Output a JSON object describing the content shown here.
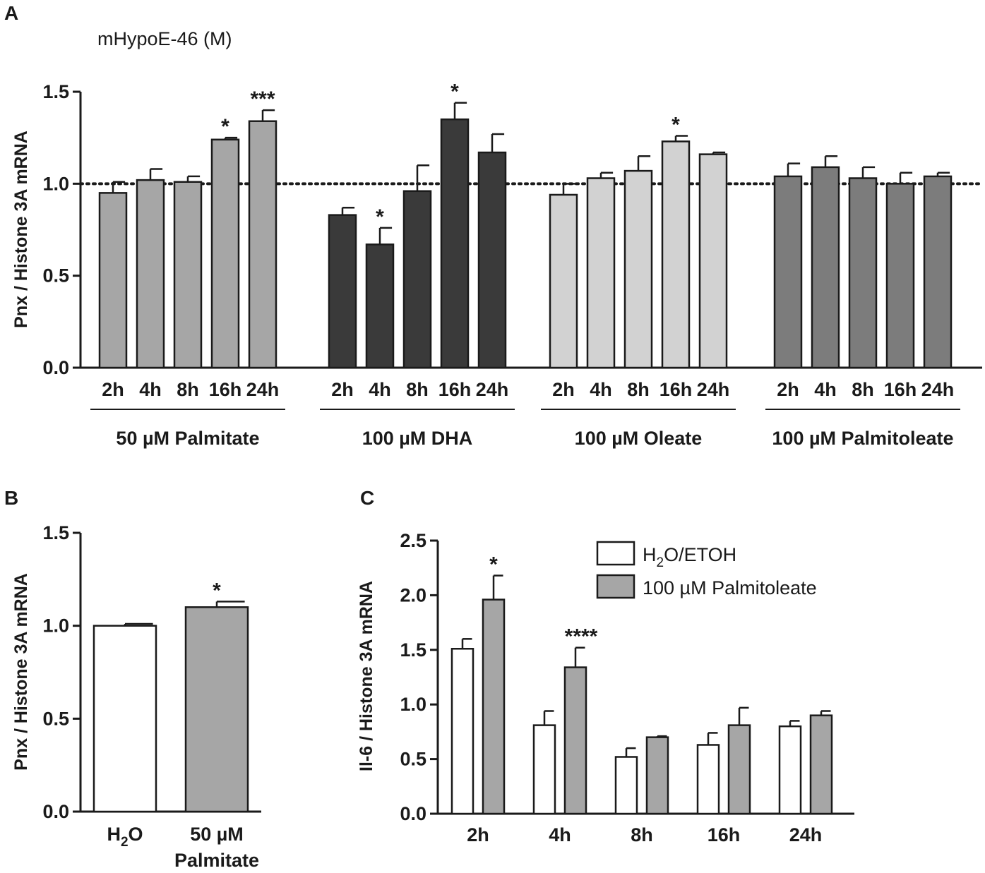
{
  "colors": {
    "palmitate": "#a6a6a6",
    "dha": "#3a3a3a",
    "oleate": "#d2d2d2",
    "palmitoleate": "#7c7c7c",
    "white": "#ffffff",
    "edge": "#1a1a1a"
  },
  "chart_data": [
    {
      "panel": "A",
      "type": "bar",
      "title": "mHypoE-46 (M)",
      "ylabel": "Pnx / Histone 3A mRNA",
      "ylim": [
        0,
        1.5
      ],
      "yticks": [
        "0.0",
        "0.5",
        "1.0",
        "1.5"
      ],
      "reference_line": 1.0,
      "categories": [
        "2h",
        "4h",
        "8h",
        "16h",
        "24h"
      ],
      "groups": [
        {
          "name": "50 µM Palmitate",
          "color_key": "palmitate",
          "values": [
            0.95,
            1.02,
            1.01,
            1.24,
            1.34
          ],
          "errors": [
            0.06,
            0.06,
            0.03,
            0.01,
            0.06
          ],
          "annotations": [
            "",
            "",
            "",
            "*",
            "***"
          ]
        },
        {
          "name": "100 µM DHA",
          "color_key": "dha",
          "values": [
            0.83,
            0.67,
            0.96,
            1.35,
            1.17
          ],
          "errors": [
            0.04,
            0.09,
            0.14,
            0.09,
            0.1
          ],
          "annotations": [
            "",
            "*",
            "",
            "*",
            ""
          ]
        },
        {
          "name": "100 µM Oleate",
          "color_key": "oleate",
          "values": [
            0.94,
            1.03,
            1.07,
            1.23,
            1.16
          ],
          "errors": [
            0.06,
            0.03,
            0.08,
            0.03,
            0.01
          ],
          "annotations": [
            "",
            "",
            "",
            "*",
            ""
          ]
        },
        {
          "name": "100 µM Palmitoleate",
          "color_key": "palmitoleate",
          "values": [
            1.04,
            1.09,
            1.03,
            1.0,
            1.04
          ],
          "errors": [
            0.07,
            0.06,
            0.06,
            0.06,
            0.02
          ],
          "annotations": [
            "",
            "",
            "",
            "",
            ""
          ]
        }
      ]
    },
    {
      "panel": "B",
      "type": "bar",
      "ylabel": "Pnx / Histone 3A mRNA",
      "ylim": [
        0,
        1.5
      ],
      "yticks": [
        "0.0",
        "0.5",
        "1.0",
        "1.5"
      ],
      "categories": [
        {
          "main": "H",
          "sub": "2",
          "tail": "O",
          "line2": ""
        },
        {
          "main": "50 µM",
          "sub": "",
          "tail": "",
          "line2": "Palmitate"
        }
      ],
      "values": [
        1.0,
        1.1
      ],
      "errors": [
        0.01,
        0.03
      ],
      "color_keys": [
        "white",
        "palmitate"
      ],
      "annotations": [
        "",
        "*"
      ]
    },
    {
      "panel": "C",
      "type": "bar",
      "ylabel": "Il-6 / Histone 3A mRNA",
      "ylim": [
        0,
        2.5
      ],
      "yticks": [
        "0.0",
        "0.5",
        "1.0",
        "1.5",
        "2.0",
        "2.5"
      ],
      "categories": [
        "2h",
        "4h",
        "8h",
        "16h",
        "24h"
      ],
      "series": [
        {
          "name": "H2O/ETOH",
          "legend_main": "H",
          "legend_sub": "2",
          "legend_tail": "O/ETOH",
          "color_key": "white",
          "values": [
            1.51,
            0.81,
            0.52,
            0.63,
            0.8
          ],
          "errors": [
            0.09,
            0.13,
            0.08,
            0.11,
            0.05
          ],
          "annotations": [
            "",
            "",
            "",
            "",
            ""
          ]
        },
        {
          "name": "100 µM Palmitoleate",
          "legend_main": "100 µM Palmitoleate",
          "legend_sub": "",
          "legend_tail": "",
          "color_key": "palmitate",
          "values": [
            1.96,
            1.34,
            0.7,
            0.81,
            0.9
          ],
          "errors": [
            0.22,
            0.18,
            0.01,
            0.16,
            0.04
          ],
          "annotations": [
            "*",
            "****",
            "",
            "",
            ""
          ]
        }
      ]
    }
  ],
  "panels": {
    "a": "A",
    "b": "B",
    "c": "C"
  }
}
